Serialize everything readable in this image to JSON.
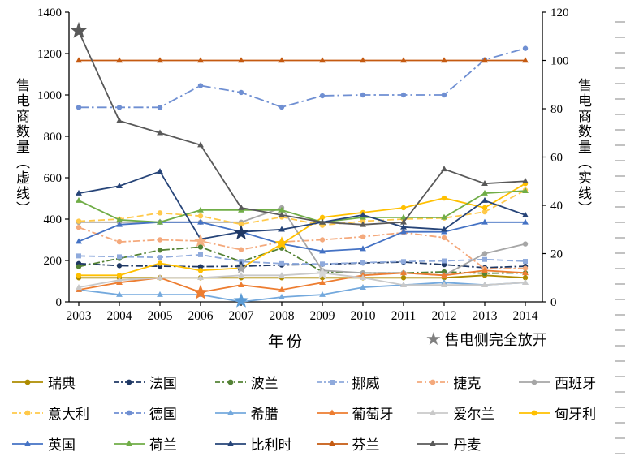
{
  "axes": {
    "y_left_label": "售电商数量（虚线）",
    "y_right_label": "售电商数量（实线）",
    "x_label": "年份",
    "left_ticks": [
      "0",
      "200",
      "400",
      "600",
      "800",
      "1000",
      "1200",
      "1400"
    ],
    "right_ticks": [
      "0",
      "20",
      "40",
      "60",
      "80",
      "100",
      "120"
    ],
    "x_ticks": [
      "2003",
      "2004",
      "2005",
      "2006",
      "2007",
      "2008",
      "2009",
      "2010",
      "2011",
      "2012",
      "2013",
      "2014"
    ]
  },
  "note": {
    "star_glyph": "★",
    "star_label": "售电侧完全放开"
  },
  "chart_data": {
    "type": "line",
    "x": [
      2003,
      2004,
      2005,
      2006,
      2007,
      2008,
      2009,
      2010,
      2011,
      2012,
      2013,
      2014
    ],
    "left_axis": {
      "label": "售电商数量（虚线）",
      "range": [
        0,
        1400
      ],
      "applies_to": "dashed-line series"
    },
    "right_axis": {
      "label": "售电商数量（实线）",
      "range": [
        0,
        120
      ],
      "applies_to": "solid-line series"
    },
    "grid": "off",
    "legend_position": "bottom",
    "series": [
      {
        "name": "瑞典",
        "axis": "right",
        "color": "#AD8B00",
        "line": "solid",
        "marker": "circle",
        "values": [
          10,
          10,
          10,
          10,
          10,
          10,
          10,
          10,
          10,
          10,
          11,
          10
        ]
      },
      {
        "name": "法国",
        "axis": "left",
        "color": "#1F3864",
        "line": "dashdot",
        "marker": "circle",
        "values": [
          185,
          175,
          172,
          170,
          172,
          178,
          182,
          188,
          192,
          180,
          165,
          172
        ]
      },
      {
        "name": "波兰",
        "axis": "left",
        "color": "#548235",
        "line": "dashdot",
        "marker": "circle",
        "values": [
          170,
          210,
          250,
          265,
          195,
          260,
          145,
          140,
          140,
          145,
          138,
          140
        ]
      },
      {
        "name": "挪威",
        "axis": "left",
        "color": "#8FAADC",
        "line": "dashed",
        "marker": "square",
        "values": [
          222,
          218,
          215,
          228,
          195,
          185,
          183,
          190,
          195,
          198,
          205,
          196
        ]
      },
      {
        "name": "捷克",
        "axis": "left",
        "color": "#F4A97C",
        "line": "dashdot",
        "marker": "circle",
        "values": [
          360,
          290,
          300,
          294,
          252,
          290,
          300,
          315,
          335,
          310,
          160,
          162
        ]
      },
      {
        "name": "西班牙",
        "axis": "right",
        "color": "#A6A6A6",
        "line": "solid",
        "marker": "circle",
        "values": [
          33,
          33,
          33,
          33,
          33,
          39,
          13,
          12,
          12,
          11,
          20,
          24
        ]
      },
      {
        "name": "意大利",
        "axis": "left",
        "color": "#FFC94A",
        "line": "dashed",
        "marker": "circle",
        "values": [
          390,
          400,
          430,
          415,
          375,
          410,
          370,
          390,
          400,
          405,
          435,
          540
        ]
      },
      {
        "name": "德国",
        "axis": "left",
        "color": "#6F8FD2",
        "line": "longdashdot",
        "marker": "circle",
        "values": [
          940,
          940,
          940,
          1045,
          1012,
          941,
          996,
          1000,
          1000,
          1000,
          1170,
          1225
        ]
      },
      {
        "name": "希腊",
        "axis": "right",
        "color": "#74A9DD",
        "line": "solid",
        "marker": "triangle",
        "values": [
          5,
          3,
          3,
          3,
          0,
          2,
          3,
          6,
          7,
          8,
          7,
          8
        ]
      },
      {
        "name": "葡萄牙",
        "axis": "right",
        "color": "#ED7D31",
        "line": "solid",
        "marker": "triangle",
        "values": [
          5,
          8,
          10,
          4,
          7,
          5,
          8,
          11,
          12,
          11,
          13,
          12
        ]
      },
      {
        "name": "爱尔兰",
        "axis": "right",
        "color": "#C9C9C9",
        "line": "solid",
        "marker": "triangle",
        "values": [
          6,
          9,
          10,
          10,
          11,
          11,
          12,
          10,
          7,
          7,
          7,
          8
        ]
      },
      {
        "name": "匈牙利",
        "axis": "right",
        "color": "#FFC000",
        "line": "solid",
        "marker": "circle",
        "values": [
          11,
          11,
          16,
          13,
          14,
          24,
          35,
          37,
          39,
          43,
          39,
          49
        ]
      },
      {
        "name": "英国",
        "axis": "right",
        "color": "#4472C4",
        "line": "solid",
        "marker": "triangle",
        "values": [
          25,
          32,
          33,
          33,
          29,
          24,
          21,
          22,
          29,
          29,
          33,
          33
        ]
      },
      {
        "name": "荷兰",
        "axis": "right",
        "color": "#70AD47",
        "line": "solid",
        "marker": "triangle",
        "values": [
          42,
          34,
          33,
          38,
          38,
          38,
          33,
          35,
          35,
          35,
          45,
          46
        ]
      },
      {
        "name": "比利时",
        "axis": "right",
        "color": "#264478",
        "line": "solid",
        "marker": "triangle",
        "values": [
          45,
          48,
          54,
          26,
          29,
          30,
          33,
          36,
          31,
          30,
          42,
          36
        ]
      },
      {
        "name": "芬兰",
        "axis": "right",
        "color": "#C55A11",
        "line": "solid",
        "marker": "triangle",
        "values": [
          100,
          100,
          100,
          100,
          100,
          100,
          100,
          100,
          100,
          100,
          100,
          100
        ]
      },
      {
        "name": "丹麦",
        "axis": "right",
        "color": "#595959",
        "line": "solid",
        "marker": "triangle",
        "values": [
          112,
          75,
          70,
          65,
          39,
          36,
          33,
          32,
          33,
          55,
          49,
          50
        ]
      }
    ],
    "open_markers_label": "售电侧完全放开",
    "open_markers": [
      {
        "country": "丹麦",
        "year": 2003,
        "value_left_axis": 1310,
        "color": "#595959",
        "radius": 11
      },
      {
        "country": "捷克",
        "year": 2006,
        "value_left_axis": 294,
        "color": "#F4B183",
        "radius": 9
      },
      {
        "country": "葡萄牙",
        "year": 2006,
        "value_left_axis": 45,
        "color": "#ED7D31",
        "radius": 10
      },
      {
        "country": "比利时",
        "year": 2007,
        "value_left_axis": 333,
        "color": "#1F3864",
        "radius": 10
      },
      {
        "country": "法国",
        "year": 2007,
        "value_left_axis": 172,
        "color": "#1F3864",
        "radius": 7
      },
      {
        "country": "西班牙",
        "year": 2007,
        "value_left_axis": 160,
        "color": "#A6A6A6",
        "radius": 7
      },
      {
        "country": "希腊",
        "year": 2007,
        "value_left_axis": 5,
        "color": "#5B9BD5",
        "radius": 10
      },
      {
        "country": "匈牙利",
        "year": 2008,
        "value_left_axis": 282,
        "color": "#FFC000",
        "radius": 9
      },
      {
        "country": "爱尔兰",
        "year": 2009,
        "value_left_axis": 137,
        "color": "#D6D6D6",
        "radius": 8
      }
    ]
  }
}
